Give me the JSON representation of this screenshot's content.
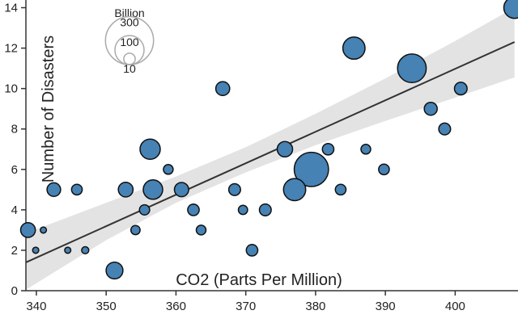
{
  "chart_data": {
    "type": "scatter",
    "xlabel": "CO2 (Parts Per Million)",
    "ylabel": "Number of Disasters",
    "xlim": [
      338.5,
      409
    ],
    "ylim": [
      0,
      14.5
    ],
    "x_ticks": [
      340,
      350,
      360,
      370,
      380,
      390,
      400
    ],
    "y_ticks": [
      0,
      2,
      4,
      6,
      8,
      10,
      12,
      14
    ],
    "colors": {
      "point_fill": "#4682b4",
      "point_stroke": "#111111",
      "trend_line": "#333333",
      "confidence_band": "#e3e3e3",
      "axis": "#333333",
      "legend_circle": "#aaaaaa"
    },
    "size_variable_unit": "Billion",
    "size_legend": [
      {
        "label": "300",
        "value": 300
      },
      {
        "label": "100",
        "value": 100
      },
      {
        "label": "10",
        "value": 10
      }
    ],
    "points": [
      {
        "x": 338.8,
        "y": 3,
        "size": 20
      },
      {
        "x": 339.9,
        "y": 2,
        "size": 1
      },
      {
        "x": 341.0,
        "y": 3,
        "size": 1
      },
      {
        "x": 342.5,
        "y": 5,
        "size": 16
      },
      {
        "x": 344.5,
        "y": 2,
        "size": 1
      },
      {
        "x": 345.8,
        "y": 5,
        "size": 8
      },
      {
        "x": 347.0,
        "y": 2,
        "size": 2
      },
      {
        "x": 351.2,
        "y": 1,
        "size": 28
      },
      {
        "x": 352.8,
        "y": 5,
        "size": 20
      },
      {
        "x": 354.2,
        "y": 3,
        "size": 5
      },
      {
        "x": 355.5,
        "y": 4,
        "size": 7
      },
      {
        "x": 356.3,
        "y": 7,
        "size": 44
      },
      {
        "x": 356.7,
        "y": 5,
        "size": 40
      },
      {
        "x": 358.9,
        "y": 6,
        "size": 6
      },
      {
        "x": 360.8,
        "y": 5,
        "size": 18
      },
      {
        "x": 362.5,
        "y": 4,
        "size": 10
      },
      {
        "x": 363.6,
        "y": 3,
        "size": 6
      },
      {
        "x": 366.7,
        "y": 10,
        "size": 17
      },
      {
        "x": 368.4,
        "y": 5,
        "size": 11
      },
      {
        "x": 369.6,
        "y": 4,
        "size": 5
      },
      {
        "x": 370.9,
        "y": 2,
        "size": 10
      },
      {
        "x": 372.8,
        "y": 4,
        "size": 11
      },
      {
        "x": 375.6,
        "y": 7,
        "size": 22
      },
      {
        "x": 377.0,
        "y": 5,
        "size": 55
      },
      {
        "x": 379.4,
        "y": 6,
        "size": 150
      },
      {
        "x": 381.8,
        "y": 7,
        "size": 10
      },
      {
        "x": 383.6,
        "y": 5,
        "size": 8
      },
      {
        "x": 385.5,
        "y": 12,
        "size": 55
      },
      {
        "x": 387.2,
        "y": 7,
        "size": 6
      },
      {
        "x": 389.8,
        "y": 6,
        "size": 8
      },
      {
        "x": 393.8,
        "y": 11,
        "size": 100
      },
      {
        "x": 396.5,
        "y": 9,
        "size": 14
      },
      {
        "x": 398.5,
        "y": 8,
        "size": 11
      },
      {
        "x": 400.8,
        "y": 10,
        "size": 13
      },
      {
        "x": 408.5,
        "y": 14,
        "size": 50
      }
    ],
    "regression": {
      "x0": 338.5,
      "y0": 1.4,
      "x1": 408.5,
      "y1": 12.3,
      "band": [
        {
          "x": 338.5,
          "lower": 0.05,
          "upper": 2.85
        },
        {
          "x": 350,
          "lower": 2.5,
          "upper": 4.35
        },
        {
          "x": 360,
          "lower": 4.35,
          "upper": 5.65
        },
        {
          "x": 370,
          "lower": 5.85,
          "upper": 7.1
        },
        {
          "x": 380,
          "lower": 7.2,
          "upper": 8.75
        },
        {
          "x": 390,
          "lower": 8.4,
          "upper": 10.5
        },
        {
          "x": 400,
          "lower": 9.55,
          "upper": 12.35
        },
        {
          "x": 408.5,
          "lower": 10.55,
          "upper": 14.0
        }
      ]
    }
  }
}
